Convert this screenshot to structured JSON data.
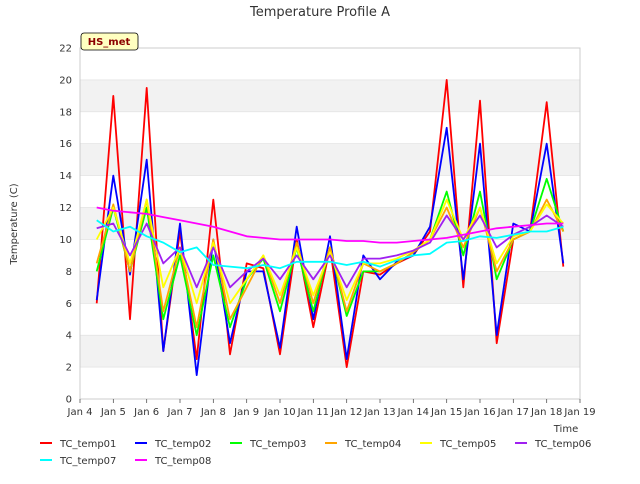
{
  "chart_data": {
    "type": "line",
    "title": "Temperature Profile A",
    "xlabel": "Time",
    "ylabel": "Temperature (C)",
    "ylim": [
      0,
      22
    ],
    "yticks": [
      0,
      2,
      4,
      6,
      8,
      10,
      12,
      14,
      16,
      18,
      20,
      22
    ],
    "xlim": [
      "2024-01-04",
      "2024-01-19"
    ],
    "xtick_labels": [
      "Jan 4",
      "Jan 5",
      "Jan 6",
      "Jan 7",
      "Jan 8",
      "Jan 9",
      "Jan 10",
      "Jan 11",
      "Jan 12",
      "Jan 13",
      "Jan 14",
      "Jan 15",
      "Jan 16",
      "Jan 17",
      "Jan 18",
      "Jan 19"
    ],
    "grid": "horizontal bands",
    "legend_position": "bottom",
    "annotation": "HS_met",
    "x": [
      "2024-01-04 12:00",
      "2024-01-05 00:00",
      "2024-01-05 12:00",
      "2024-01-06 00:00",
      "2024-01-06 12:00",
      "2024-01-07 00:00",
      "2024-01-07 12:00",
      "2024-01-08 00:00",
      "2024-01-08 12:00",
      "2024-01-09 00:00",
      "2024-01-09 12:00",
      "2024-01-10 00:00",
      "2024-01-10 12:00",
      "2024-01-11 00:00",
      "2024-01-11 12:00",
      "2024-01-12 00:00",
      "2024-01-12 12:00",
      "2024-01-13 00:00",
      "2024-01-13 12:00",
      "2024-01-14 00:00",
      "2024-01-14 12:00",
      "2024-01-15 00:00",
      "2024-01-15 12:00",
      "2024-01-16 00:00",
      "2024-01-16 12:00",
      "2024-01-17 00:00",
      "2024-01-17 12:00",
      "2024-01-18 00:00",
      "2024-01-18 12:00"
    ],
    "series": [
      {
        "name": "TC_temp01",
        "color": "#ff0000",
        "values": [
          6.0,
          19.0,
          5.0,
          19.5,
          3.0,
          10.5,
          2.5,
          12.5,
          2.8,
          8.5,
          8.2,
          2.8,
          10.0,
          4.5,
          9.5,
          2.0,
          8.0,
          7.8,
          8.5,
          9.0,
          10.5,
          20.0,
          7.0,
          18.7,
          3.5,
          10.0,
          10.5,
          18.6,
          8.3
        ]
      },
      {
        "name": "TC_temp02",
        "color": "#0000ff",
        "values": [
          6.2,
          14.0,
          7.8,
          15.0,
          3.0,
          11.0,
          1.5,
          10.0,
          3.5,
          8.0,
          8.0,
          3.2,
          10.8,
          5.0,
          10.2,
          2.5,
          9.0,
          7.5,
          8.6,
          9.0,
          10.8,
          17.0,
          7.5,
          16.0,
          4.0,
          11.0,
          10.5,
          16.0,
          8.5
        ]
      },
      {
        "name": "TC_temp03",
        "color": "#00ff00",
        "values": [
          8.0,
          12.0,
          8.0,
          12.0,
          5.0,
          9.0,
          4.0,
          9.0,
          4.5,
          7.5,
          8.8,
          5.5,
          9.5,
          5.5,
          9.5,
          5.2,
          8.0,
          8.0,
          8.5,
          9.2,
          10.0,
          13.0,
          9.0,
          13.0,
          7.5,
          10.0,
          10.5,
          13.8,
          10.5
        ]
      },
      {
        "name": "TC_temp04",
        "color": "#ffa500",
        "values": [
          8.5,
          12.2,
          8.0,
          12.5,
          5.5,
          9.5,
          4.5,
          10.0,
          5.0,
          7.0,
          9.0,
          6.0,
          9.8,
          6.0,
          9.5,
          5.5,
          8.5,
          8.0,
          8.5,
          9.2,
          10.0,
          12.0,
          9.5,
          12.0,
          8.0,
          10.0,
          10.5,
          12.5,
          10.5
        ]
      },
      {
        "name": "TC_temp05",
        "color": "#ffff00",
        "values": [
          10.0,
          12.0,
          8.5,
          12.5,
          7.0,
          9.5,
          6.0,
          9.8,
          6.0,
          7.5,
          9.0,
          6.5,
          9.5,
          6.5,
          9.2,
          6.2,
          8.5,
          8.5,
          8.8,
          9.3,
          10.0,
          12.5,
          10.0,
          12.0,
          8.5,
          10.2,
          10.5,
          12.2,
          11.0
        ]
      },
      {
        "name": "TC_temp06",
        "color": "#a020f0",
        "values": [
          10.7,
          11.0,
          9.0,
          11.0,
          8.5,
          9.5,
          7.0,
          9.5,
          7.0,
          8.0,
          8.8,
          7.5,
          9.0,
          7.5,
          9.0,
          7.0,
          8.8,
          8.8,
          9.0,
          9.3,
          9.8,
          11.5,
          10.0,
          11.5,
          9.5,
          10.3,
          10.8,
          11.5,
          10.8
        ]
      },
      {
        "name": "TC_temp07",
        "color": "#00ffff",
        "values": [
          11.2,
          10.5,
          10.8,
          10.2,
          9.8,
          9.2,
          9.5,
          8.4,
          8.3,
          8.2,
          8.4,
          8.2,
          8.6,
          8.6,
          8.6,
          8.4,
          8.6,
          8.3,
          8.7,
          9.0,
          9.1,
          9.8,
          9.9,
          10.2,
          10.1,
          10.3,
          10.5,
          10.5,
          10.8
        ]
      },
      {
        "name": "TC_temp08",
        "color": "#ff00ff",
        "values": [
          12.0,
          11.8,
          11.7,
          11.6,
          11.4,
          11.2,
          11.0,
          10.8,
          10.5,
          10.2,
          10.1,
          10.0,
          10.0,
          10.0,
          10.0,
          9.9,
          9.9,
          9.8,
          9.8,
          9.9,
          10.0,
          10.1,
          10.3,
          10.5,
          10.7,
          10.8,
          10.9,
          11.0,
          11.0
        ]
      }
    ]
  }
}
